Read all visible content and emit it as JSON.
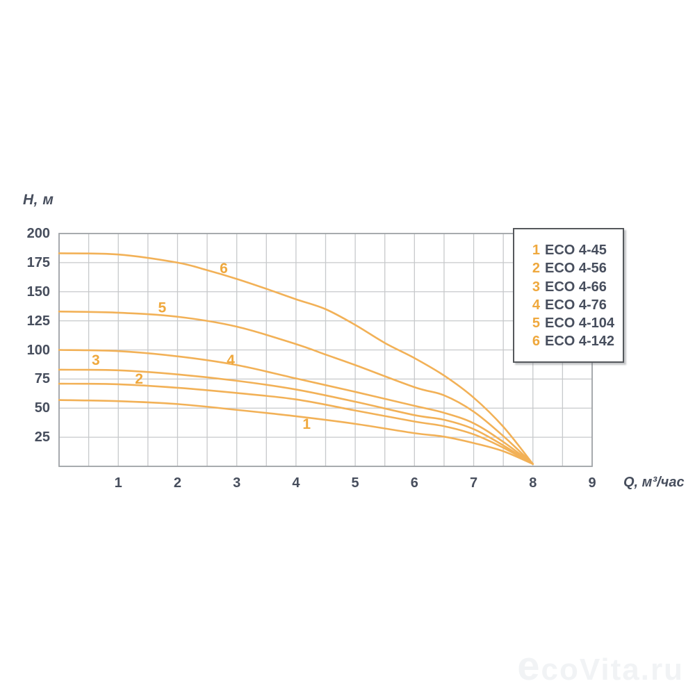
{
  "watermark": "ecoVita.ru",
  "colors": {
    "curve": "#F2B157",
    "curve_label": "#EFA83D",
    "text_dark": "#474E5D",
    "grid": "#C7C9CB",
    "plot_border": "#9FA3A7",
    "legend_border": "#55585C",
    "watermark": "#F1F3F5",
    "background": "#FFFFFF"
  },
  "chart_data": {
    "type": "line",
    "title": "",
    "xlabel": "Q, м³/час",
    "ylabel": "H, м",
    "xlim": [
      0,
      9
    ],
    "ylim": [
      0,
      200
    ],
    "x_ticks": [
      1,
      2,
      3,
      4,
      5,
      6,
      7,
      8,
      9
    ],
    "y_ticks": [
      25,
      50,
      75,
      100,
      125,
      150,
      175,
      200
    ],
    "grid": {
      "on": true,
      "x_step": 0.5,
      "y_step": 25
    },
    "legend_position": "top-right",
    "series": [
      {
        "num": "1",
        "name": "ECO 4-45",
        "curve_label_at": {
          "q": 4.18,
          "h": 36
        },
        "points": [
          [
            0,
            57
          ],
          [
            1,
            56
          ],
          [
            2,
            53.5
          ],
          [
            3,
            48.5
          ],
          [
            4,
            43
          ],
          [
            5,
            36.5
          ],
          [
            6,
            28.5
          ],
          [
            6.5,
            25.5
          ],
          [
            7,
            20
          ],
          [
            7.5,
            13
          ],
          [
            8,
            2
          ]
        ]
      },
      {
        "num": "2",
        "name": "ECO 4-56",
        "curve_label_at": {
          "q": 1.35,
          "h": 75
        },
        "points": [
          [
            0,
            71
          ],
          [
            1,
            70.5
          ],
          [
            2,
            67.5
          ],
          [
            3,
            63
          ],
          [
            4,
            57.5
          ],
          [
            5,
            48
          ],
          [
            6,
            38.5
          ],
          [
            6.5,
            34.5
          ],
          [
            7,
            27.5
          ],
          [
            7.5,
            16
          ],
          [
            8,
            2
          ]
        ]
      },
      {
        "num": "3",
        "name": "ECO 4-66",
        "curve_label_at": {
          "q": 0.62,
          "h": 91
        },
        "points": [
          [
            0,
            83
          ],
          [
            1,
            82.5
          ],
          [
            2,
            79
          ],
          [
            3,
            73.5
          ],
          [
            4,
            66
          ],
          [
            5,
            55.5
          ],
          [
            6,
            44
          ],
          [
            6.5,
            40
          ],
          [
            7,
            32
          ],
          [
            7.5,
            18
          ],
          [
            8,
            2
          ]
        ]
      },
      {
        "num": "4",
        "name": "ECO 4-76",
        "curve_label_at": {
          "q": 2.9,
          "h": 91
        },
        "points": [
          [
            0,
            100
          ],
          [
            1,
            99
          ],
          [
            2,
            94.5
          ],
          [
            3,
            87
          ],
          [
            4,
            75.5
          ],
          [
            5,
            64
          ],
          [
            6,
            52
          ],
          [
            6.5,
            46
          ],
          [
            7,
            37
          ],
          [
            7.5,
            21
          ],
          [
            8,
            2
          ]
        ]
      },
      {
        "num": "5",
        "name": "ECO 4-104",
        "curve_label_at": {
          "q": 1.74,
          "h": 136
        },
        "points": [
          [
            0,
            133
          ],
          [
            1,
            132
          ],
          [
            2,
            128.5
          ],
          [
            3,
            120
          ],
          [
            4,
            105
          ],
          [
            4.5,
            96
          ],
          [
            5,
            87
          ],
          [
            6,
            68
          ],
          [
            6.5,
            61
          ],
          [
            7,
            47
          ],
          [
            7.5,
            26
          ],
          [
            8,
            2
          ]
        ]
      },
      {
        "num": "6",
        "name": "ECO 4-142",
        "curve_label_at": {
          "q": 2.78,
          "h": 170
        },
        "points": [
          [
            0,
            183
          ],
          [
            1,
            182
          ],
          [
            2,
            175
          ],
          [
            2.5,
            168.5
          ],
          [
            3,
            161
          ],
          [
            3.5,
            152.5
          ],
          [
            4,
            143.5
          ],
          [
            4.5,
            135
          ],
          [
            5,
            121.5
          ],
          [
            5.5,
            106
          ],
          [
            6,
            93
          ],
          [
            6.5,
            78
          ],
          [
            7,
            59
          ],
          [
            7.5,
            34
          ],
          [
            8,
            2
          ]
        ]
      }
    ]
  }
}
